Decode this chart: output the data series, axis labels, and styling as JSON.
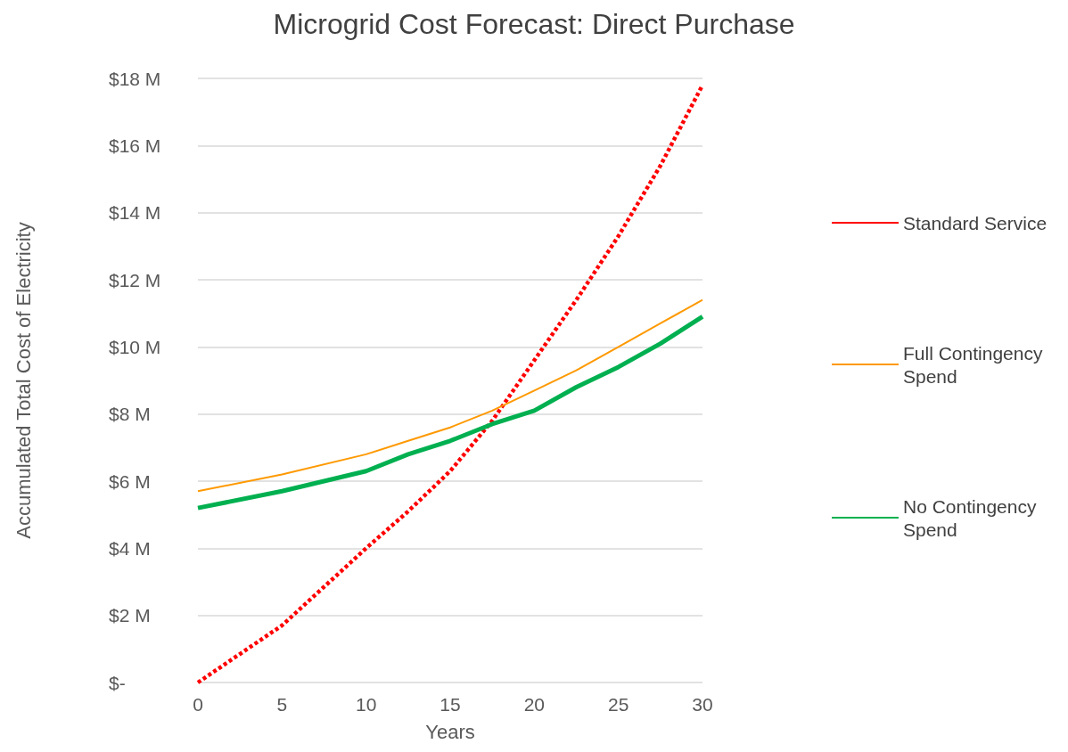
{
  "chart_data": {
    "type": "line",
    "title": "Microgrid Cost Forecast: Direct Purchase",
    "xlabel": "Years",
    "ylabel": "Accumulated Total Cost of Electricity",
    "x": [
      0,
      5,
      10,
      12.5,
      15,
      17.5,
      20,
      22.5,
      25,
      27.5,
      30
    ],
    "series": [
      {
        "name": "Standard Service",
        "color": "#ff0000",
        "line_style": "dashed",
        "values": [
          0,
          1.7,
          4.0,
          5.1,
          6.3,
          7.8,
          9.6,
          11.4,
          13.3,
          15.4,
          17.8
        ]
      },
      {
        "name": "Full Contingency Spend",
        "color": "#ff9900",
        "line_style": "solid",
        "values": [
          5.7,
          6.2,
          6.8,
          7.2,
          7.6,
          8.1,
          8.7,
          9.3,
          10.0,
          10.7,
          11.4
        ]
      },
      {
        "name": "No Contingency Spend",
        "color": "#00b050",
        "line_style": "solid",
        "values": [
          5.2,
          5.7,
          6.3,
          6.8,
          7.2,
          7.7,
          8.1,
          8.8,
          9.4,
          10.1,
          10.9
        ]
      }
    ],
    "xlim": [
      0,
      30
    ],
    "xticks": [
      0,
      5,
      10,
      15,
      20,
      25,
      30
    ],
    "ylim": [
      0,
      18
    ],
    "yticks": [
      {
        "value": 0,
        "label": "$-"
      },
      {
        "value": 2,
        "label": "$2 M"
      },
      {
        "value": 4,
        "label": "$4 M"
      },
      {
        "value": 6,
        "label": "$6 M"
      },
      {
        "value": 8,
        "label": "$8 M"
      },
      {
        "value": 10,
        "label": "$10 M"
      },
      {
        "value": 12,
        "label": "$12 M"
      },
      {
        "value": 14,
        "label": "$14 M"
      },
      {
        "value": 16,
        "label": "$16 M"
      },
      {
        "value": 18,
        "label": "$18 M"
      }
    ],
    "grid": "y",
    "legend": "right",
    "marker": "none"
  }
}
